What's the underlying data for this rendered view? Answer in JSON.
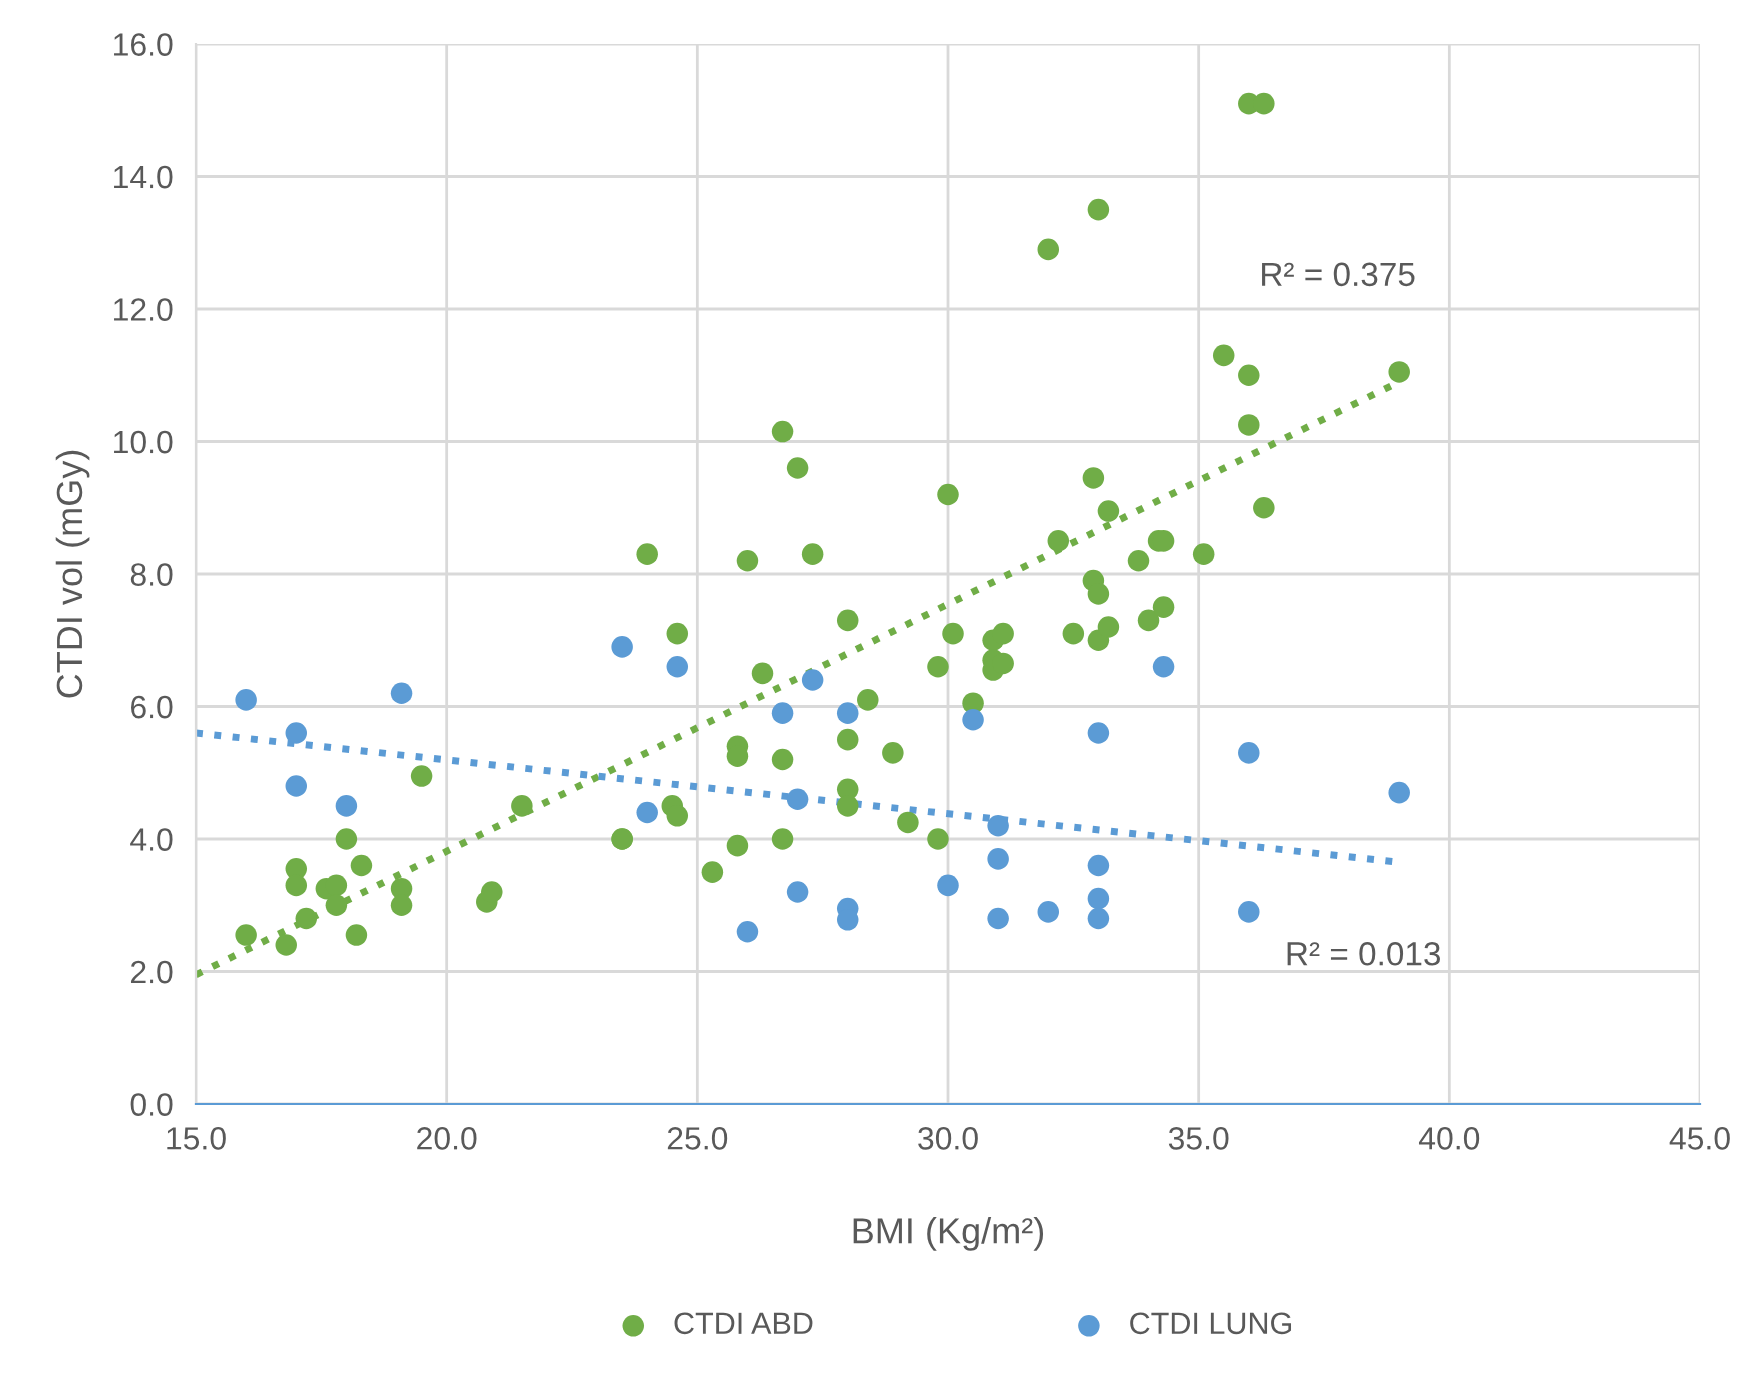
{
  "chart_data": {
    "type": "scatter",
    "xlabel": "BMI (Kg/m²)",
    "ylabel": "CTDI vol (mGy)",
    "xlim": [
      15,
      45
    ],
    "xticks": [
      {
        "value": 15,
        "label": "15.0"
      },
      {
        "value": 20,
        "label": "20.0"
      },
      {
        "value": 25,
        "label": "25.0"
      },
      {
        "value": 30,
        "label": "30.0"
      },
      {
        "value": 35,
        "label": "35.0"
      },
      {
        "value": 40,
        "label": "40.0"
      },
      {
        "value": 45,
        "label": "45.0"
      }
    ],
    "ylim": [
      0,
      16
    ],
    "yticks": [
      {
        "value": 0,
        "label": "0.0"
      },
      {
        "value": 2,
        "label": "2.0"
      },
      {
        "value": 4,
        "label": "4.0"
      },
      {
        "value": 6,
        "label": "6.0"
      },
      {
        "value": 8,
        "label": "8.0"
      },
      {
        "value": 10,
        "label": "10.0"
      },
      {
        "value": 12,
        "label": "12.0"
      },
      {
        "value": 14,
        "label": "14.0"
      },
      {
        "value": 16,
        "label": "16.0"
      }
    ],
    "grid": true,
    "legend": "bottom",
    "marker": "circle",
    "series": [
      {
        "name": "CTDI ABD",
        "color": "#70ad47",
        "x": [
          16,
          16.8,
          17,
          17,
          17.2,
          17.6,
          17.8,
          17.8,
          18,
          18.2,
          18.3,
          19.1,
          19.1,
          19.5,
          20.8,
          20.9,
          21.5,
          23.5,
          23.5,
          24,
          24.5,
          24.6,
          24.6,
          25.3,
          25.8,
          25.8,
          25.8,
          26,
          26.3,
          26.7,
          26.7,
          26.7,
          27,
          27.3,
          28,
          28,
          28,
          28,
          28.4,
          28.9,
          29.2,
          29.8,
          29.8,
          30,
          30.1,
          30.5,
          30.9,
          30.9,
          30.9,
          31.1,
          31.1,
          32,
          32.2,
          32.5,
          33,
          32.9,
          32.9,
          33,
          33,
          33.2,
          33.2,
          33.8,
          34,
          34.2,
          34.3,
          34.3,
          35.1,
          35.5,
          36,
          36,
          36,
          36.3,
          36.3,
          39
        ],
        "values": [
          2.55,
          2.4,
          3.55,
          3.3,
          2.8,
          3.25,
          3.3,
          3.0,
          4.0,
          2.55,
          3.6,
          3.25,
          3.0,
          4.95,
          3.05,
          3.2,
          4.5,
          4.0,
          4.0,
          8.3,
          4.5,
          4.35,
          7.1,
          3.5,
          5.4,
          5.25,
          3.9,
          8.2,
          6.5,
          10.15,
          5.2,
          4.0,
          9.6,
          8.3,
          7.3,
          5.5,
          4.75,
          4.5,
          6.1,
          5.3,
          4.25,
          6.6,
          4.0,
          9.2,
          7.1,
          6.05,
          7.0,
          6.7,
          6.55,
          7.1,
          6.65,
          12.9,
          8.5,
          7.1,
          13.5,
          9.45,
          7.9,
          7.7,
          7.0,
          8.95,
          7.2,
          8.2,
          7.3,
          8.5,
          8.5,
          7.5,
          8.3,
          11.3,
          15.1,
          11.0,
          10.25,
          15.1,
          9.0,
          11.05
        ]
      },
      {
        "name": "CTDI LUNG",
        "color": "#5b9bd5",
        "x": [
          16,
          17,
          17,
          18,
          19.1,
          23.5,
          24,
          24.6,
          26,
          26.7,
          27,
          27,
          27.3,
          28,
          28,
          28,
          30,
          30.5,
          31,
          31,
          31,
          32,
          33,
          33,
          33,
          33,
          34.3,
          36,
          36,
          39
        ],
        "values": [
          6.1,
          5.6,
          4.8,
          4.5,
          6.2,
          6.9,
          4.4,
          6.6,
          2.6,
          5.9,
          4.6,
          3.2,
          6.4,
          5.9,
          2.95,
          2.78,
          3.3,
          5.8,
          4.2,
          3.7,
          2.8,
          2.9,
          5.6,
          3.6,
          3.1,
          2.8,
          6.6,
          5.3,
          2.9,
          4.7
        ]
      },
      {
        "type": "line",
        "color": "#70ad47",
        "line_style": "dotted",
        "marker": "none",
        "x": [
          15,
          39
        ],
        "values": [
          1.95,
          10.9
        ]
      },
      {
        "type": "line",
        "color": "#5b9bd5",
        "line_style": "dotted",
        "marker": "none",
        "x": [
          15,
          39
        ],
        "values": [
          5.6,
          3.65
        ]
      }
    ],
    "annotations": [
      "R² = 0.375",
      "R² = 0.013"
    ]
  }
}
